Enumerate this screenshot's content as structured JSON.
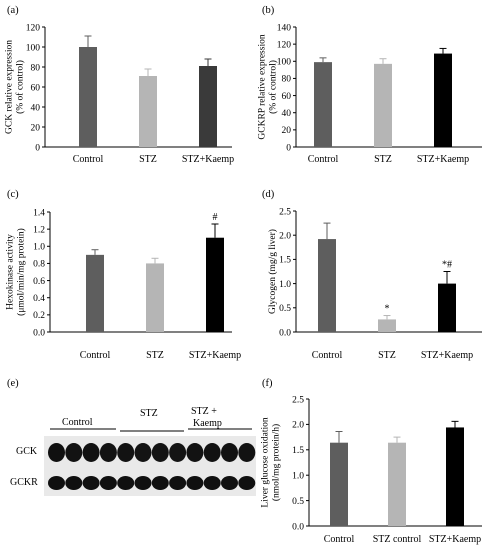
{
  "colors": {
    "dark_gray": "#5e5e5e",
    "light_gray": "#b5b5b5",
    "black": "#000000"
  },
  "chart_data": [
    {
      "panel": "(a)",
      "type": "bar",
      "categories": [
        "Control",
        "STZ",
        "STZ+Kaemp"
      ],
      "values": [
        100,
        71,
        81
      ],
      "errors": [
        11,
        7,
        7
      ],
      "bar_colors": [
        "dark_gray",
        "light_gray",
        "black_dark"
      ],
      "ylabel_lines": [
        "GCK relative expression",
        "(% of control)"
      ],
      "ylim": [
        0,
        120
      ],
      "yticks": [
        0,
        20,
        40,
        60,
        80,
        100,
        120
      ],
      "tick_labels": [
        "0",
        "20",
        "40",
        "60",
        "80",
        "100",
        "120"
      ],
      "annotations": [
        "",
        "",
        ""
      ]
    },
    {
      "panel": "(b)",
      "type": "bar",
      "categories": [
        "Control",
        "STZ",
        "STZ+Kaemp"
      ],
      "values": [
        99,
        97,
        109
      ],
      "errors": [
        5,
        6,
        6
      ],
      "bar_colors": [
        "dark_gray",
        "light_gray",
        "black"
      ],
      "ylabel_lines": [
        "GCKRP relative expression",
        "(% of control)"
      ],
      "ylim": [
        0,
        140
      ],
      "yticks": [
        0,
        20,
        40,
        60,
        80,
        100,
        120,
        140
      ],
      "tick_labels": [
        "0",
        "20",
        "40",
        "60",
        "80",
        "100",
        "120",
        "140"
      ],
      "annotations": [
        "",
        "",
        ""
      ]
    },
    {
      "panel": "(c)",
      "type": "bar",
      "categories": [
        "Control",
        "STZ",
        "STZ+Kaemp"
      ],
      "values": [
        0.9,
        0.8,
        1.1
      ],
      "errors": [
        0.06,
        0.06,
        0.16
      ],
      "bar_colors": [
        "dark_gray",
        "light_gray",
        "black"
      ],
      "ylabel_lines": [
        "Hexokinase activity",
        "(μmol/min/mg protein)"
      ],
      "ylim": [
        0,
        1.4
      ],
      "yticks": [
        0,
        0.2,
        0.4,
        0.6,
        0.8,
        1.0,
        1.2,
        1.4
      ],
      "tick_labels": [
        "0.0",
        "0.2",
        "0.4",
        "0.6",
        "0.8",
        "1.0",
        "1.2",
        "1.4"
      ],
      "annotations": [
        "",
        "",
        "#"
      ]
    },
    {
      "panel": "(d)",
      "type": "bar",
      "categories": [
        "Control",
        "STZ",
        "STZ+Kaemp"
      ],
      "values": [
        1.92,
        0.26,
        1.0
      ],
      "errors": [
        0.33,
        0.08,
        0.25
      ],
      "bar_colors": [
        "dark_gray",
        "light_gray",
        "black"
      ],
      "ylabel_lines": [
        "Glycogen (mg/g liver)"
      ],
      "ylim": [
        0,
        2.5
      ],
      "yticks": [
        0,
        0.5,
        1.0,
        1.5,
        2.0,
        2.5
      ],
      "tick_labels": [
        "0.0",
        "0.5",
        "1.0",
        "1.5",
        "2.0",
        "2.5"
      ],
      "annotations": [
        "",
        "*",
        "*#"
      ]
    },
    {
      "panel": "(f)",
      "type": "bar",
      "categories": [
        "Control",
        "STZ control",
        "STZ+Kaemp"
      ],
      "values": [
        1.64,
        1.64,
        1.94
      ],
      "errors": [
        0.22,
        0.11,
        0.12
      ],
      "bar_colors": [
        "dark_gray",
        "light_gray",
        "black"
      ],
      "ylabel_lines": [
        "Liver glucose oxidation",
        "(nmol/mg protein/h)"
      ],
      "ylim": [
        0,
        2.5
      ],
      "yticks": [
        0,
        0.5,
        1.0,
        1.5,
        2.0,
        2.5
      ],
      "tick_labels": [
        "0.0",
        "0.5",
        "1.0",
        "1.5",
        "2.0",
        "2.5"
      ],
      "annotations": [
        "",
        "",
        ""
      ]
    }
  ],
  "blot": {
    "panel": "(e)",
    "groups": [
      "Control",
      "STZ",
      "STZ +",
      "Kaemp"
    ],
    "rows": [
      "GCK",
      "GCKR"
    ]
  }
}
